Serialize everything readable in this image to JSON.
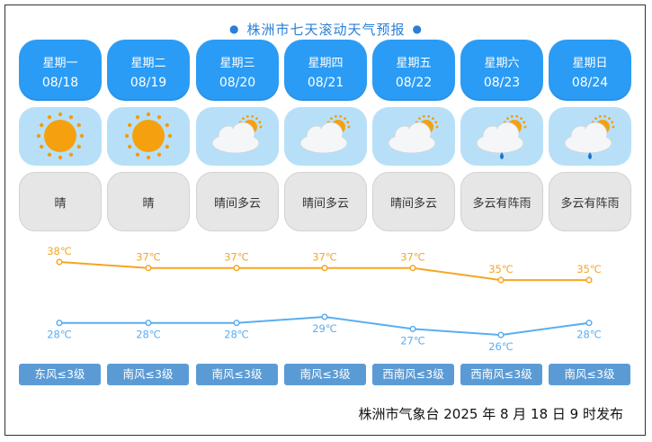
{
  "title": "株洲市七天滚动天气预报",
  "days": [
    {
      "weekday": "星期一",
      "date": "08/18",
      "icon": "sun-icon",
      "weather": "晴",
      "wind": "东风≤3级"
    },
    {
      "weekday": "星期二",
      "date": "08/19",
      "icon": "sun-icon",
      "weather": "晴",
      "wind": "南风≤3级"
    },
    {
      "weekday": "星期三",
      "date": "08/20",
      "icon": "partly-cloudy-icon",
      "weather": "晴间多云",
      "wind": "南风≤3级"
    },
    {
      "weekday": "星期四",
      "date": "08/21",
      "icon": "partly-cloudy-icon",
      "weather": "晴间多云",
      "wind": "南风≤3级"
    },
    {
      "weekday": "星期五",
      "date": "08/22",
      "icon": "partly-cloudy-icon",
      "weather": "晴间多云",
      "wind": "西南风≤3级"
    },
    {
      "weekday": "星期六",
      "date": "08/23",
      "icon": "cloudy-shower-icon",
      "weather": "多云有阵雨",
      "wind": "西南风≤3级"
    },
    {
      "weekday": "星期日",
      "date": "08/24",
      "icon": "cloudy-shower-icon",
      "weather": "多云有阵雨",
      "wind": "南风≤3级"
    }
  ],
  "chart_data": {
    "type": "line",
    "x": [
      "08/18",
      "08/19",
      "08/20",
      "08/21",
      "08/22",
      "08/23",
      "08/24"
    ],
    "series": [
      {
        "values": [
          38,
          37,
          37,
          37,
          37,
          35,
          35
        ],
        "labels": [
          "38℃",
          "37℃",
          "37℃",
          "37℃",
          "37℃",
          "35℃",
          "35℃"
        ],
        "color": "#f5a623"
      },
      {
        "values": [
          28,
          28,
          28,
          29,
          27,
          26,
          28
        ],
        "labels": [
          "28℃",
          "28℃",
          "28℃",
          "29℃",
          "27℃",
          "26℃",
          "28℃"
        ],
        "color": "#5aaef0"
      }
    ]
  },
  "footer": "株洲市气象台 2025 年 8 月 18 日 9 时发布",
  "colors": {
    "card_blue": "#2b9cf5",
    "icon_bg": "#b7e0f8",
    "wind_bg": "#5b9bd5",
    "high": "#f5a623",
    "low": "#5aaef0"
  }
}
